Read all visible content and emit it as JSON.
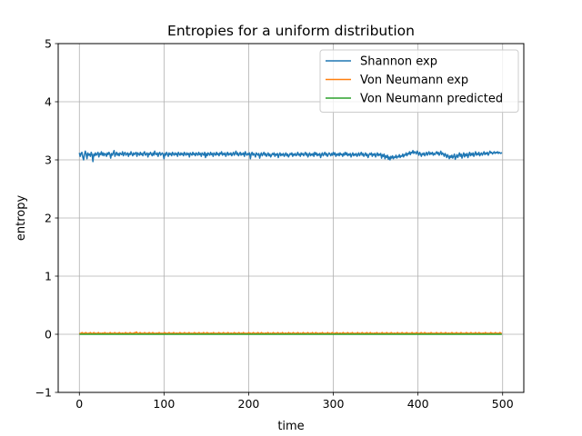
{
  "chart_data": {
    "type": "line",
    "title": "Entropies for a uniform distribution",
    "xlabel": "time",
    "ylabel": "entropy",
    "xlim": [
      -25,
      525
    ],
    "ylim": [
      -1,
      5
    ],
    "xticks": [
      0,
      100,
      200,
      300,
      400,
      500
    ],
    "yticks": [
      -1,
      0,
      1,
      2,
      3,
      4,
      5
    ],
    "grid": true,
    "legend_position": "top-right",
    "series": [
      {
        "name": "Shannon exp",
        "color": "#1f77b4",
        "x_range": [
          0,
          499
        ],
        "values": [
          3.12,
          3.06,
          3.11,
          3.13,
          3.05,
          3.0,
          3.09,
          3.15,
          3.1,
          3.02,
          3.12,
          3.08,
          3.1,
          3.06,
          3.13,
          3.09,
          2.97,
          3.1,
          3.07,
          3.12,
          3.08,
          3.1,
          3.13,
          3.05,
          3.11,
          3.09,
          3.14,
          3.08,
          3.12,
          3.07,
          3.11,
          3.1,
          3.06,
          3.12,
          3.09,
          3.13,
          3.1,
          3.03,
          3.11,
          3.08,
          3.12,
          3.16,
          3.06,
          3.1,
          3.13,
          3.08,
          3.11,
          3.07,
          3.12,
          3.1,
          3.09,
          3.14,
          3.07,
          3.11,
          3.13,
          3.08,
          3.1,
          3.12,
          3.06,
          3.11,
          3.09,
          3.14,
          3.1,
          3.07,
          3.12,
          3.09,
          3.11,
          3.13,
          3.06,
          3.12,
          3.1,
          3.08,
          3.13,
          3.09,
          3.11,
          3.07,
          3.12,
          3.14,
          3.08,
          3.1,
          3.12,
          3.05,
          3.11,
          3.09,
          3.13,
          3.1,
          3.07,
          3.12,
          3.08,
          3.15,
          3.1,
          3.09,
          3.12,
          3.06,
          3.11,
          3.13,
          3.08,
          3.1,
          3.12,
          3.09,
          3.02,
          3.11,
          3.08,
          3.13,
          3.1,
          3.06,
          3.12,
          3.09,
          3.11,
          3.07,
          3.13,
          3.1,
          3.08,
          3.12,
          3.09,
          3.11,
          3.06,
          3.13,
          3.1,
          3.08,
          3.12,
          3.09,
          3.11,
          3.07,
          3.13,
          3.1,
          3.08,
          3.12,
          3.09,
          3.11,
          3.05,
          3.12,
          3.1,
          3.08,
          3.13,
          3.09,
          3.11,
          3.07,
          3.12,
          3.1,
          3.08,
          3.13,
          3.09,
          3.11,
          3.06,
          3.12,
          3.1,
          3.08,
          3.13,
          3.04,
          3.11,
          3.07,
          3.12,
          3.1,
          3.08,
          3.13,
          3.09,
          3.11,
          3.06,
          3.12,
          3.1,
          3.08,
          3.13,
          3.09,
          3.11,
          3.07,
          3.12,
          3.1,
          3.14,
          3.08,
          3.11,
          3.09,
          3.12,
          3.06,
          3.1,
          3.13,
          3.08,
          3.11,
          3.09,
          3.12,
          3.07,
          3.1,
          3.13,
          3.08,
          3.11,
          3.15,
          3.09,
          3.12,
          3.07,
          3.1,
          3.13,
          3.08,
          3.11,
          3.09,
          3.12,
          3.06,
          3.14,
          3.1,
          3.08,
          3.11,
          3.09,
          3.12,
          3.02,
          3.1,
          3.13,
          3.08,
          3.11,
          3.09,
          3.05,
          3.12,
          3.1,
          3.08,
          3.11,
          3.03,
          3.09,
          3.12,
          3.07,
          3.1,
          3.13,
          3.08,
          3.11,
          3.06,
          3.09,
          3.12,
          3.07,
          3.1,
          3.05,
          3.08,
          3.11,
          3.09,
          3.12,
          3.06,
          3.1,
          3.08,
          3.11,
          3.04,
          3.09,
          3.12,
          3.07,
          3.1,
          3.08,
          3.11,
          3.06,
          3.09,
          3.12,
          3.07,
          3.1,
          3.05,
          3.08,
          3.11,
          3.09,
          3.12,
          3.06,
          3.1,
          3.08,
          3.11,
          3.07,
          3.09,
          3.13,
          3.08,
          3.1,
          3.06,
          3.12,
          3.09,
          3.11,
          3.07,
          3.1,
          3.13,
          3.08,
          3.11,
          3.05,
          3.09,
          3.12,
          3.07,
          3.1,
          3.08,
          3.11,
          3.06,
          3.13,
          3.09,
          3.12,
          3.07,
          3.1,
          3.08,
          3.11,
          3.04,
          3.09,
          3.12,
          3.07,
          3.1,
          3.13,
          3.08,
          3.11,
          3.06,
          3.09,
          3.12,
          3.1,
          3.07,
          3.11,
          3.08,
          3.13,
          3.09,
          3.12,
          3.06,
          3.1,
          3.08,
          3.11,
          3.07,
          3.12,
          3.09,
          3.1,
          3.06,
          3.11,
          3.08,
          3.13,
          3.09,
          3.12,
          3.07,
          3.1,
          3.08,
          3.11,
          3.05,
          3.09,
          3.12,
          3.07,
          3.1,
          3.08,
          3.11,
          3.06,
          3.09,
          3.12,
          3.07,
          3.1,
          3.13,
          3.08,
          3.11,
          3.06,
          3.09,
          3.12,
          3.07,
          3.1,
          3.04,
          3.08,
          3.11,
          3.09,
          3.12,
          3.06,
          3.1,
          3.08,
          3.11,
          3.05,
          3.09,
          3.12,
          3.07,
          3.1,
          3.08,
          3.11,
          3.03,
          3.09,
          3.06,
          3.1,
          3.02,
          3.07,
          3.04,
          3.08,
          3.01,
          3.05,
          3.0,
          3.06,
          3.03,
          3.07,
          3.02,
          3.05,
          3.04,
          3.08,
          3.03,
          3.06,
          3.05,
          3.09,
          3.04,
          3.07,
          3.06,
          3.1,
          3.05,
          3.09,
          3.08,
          3.12,
          3.07,
          3.11,
          3.1,
          3.14,
          3.09,
          3.13,
          3.12,
          3.16,
          3.11,
          3.14,
          3.13,
          3.1,
          3.15,
          3.12,
          3.08,
          3.13,
          3.1,
          3.06,
          3.11,
          3.09,
          3.12,
          3.07,
          3.1,
          3.13,
          3.08,
          3.11,
          3.14,
          3.09,
          3.12,
          3.1,
          3.13,
          3.08,
          3.11,
          3.09,
          3.12,
          3.14,
          3.1,
          3.13,
          3.08,
          3.11,
          3.15,
          3.09,
          3.12,
          3.1,
          3.06,
          3.11,
          3.08,
          3.04,
          3.09,
          3.06,
          3.02,
          3.07,
          3.04,
          3.08,
          3.03,
          3.06,
          3.1,
          3.01,
          3.05,
          3.09,
          3.04,
          3.08,
          3.12,
          3.06,
          3.1,
          3.03,
          3.08,
          3.12,
          3.05,
          3.1,
          3.07,
          3.11,
          3.04,
          3.09,
          3.13,
          3.07,
          3.11,
          3.08,
          3.12,
          3.06,
          3.1,
          3.14,
          3.08,
          3.11,
          3.09,
          3.13,
          3.07,
          3.1,
          3.12,
          3.08,
          3.11,
          3.14,
          3.09,
          3.12,
          3.1,
          3.13,
          3.08,
          3.11,
          3.15,
          3.12,
          3.13,
          3.1,
          3.12,
          3.14,
          3.11,
          3.13,
          3.12,
          3.14,
          3.11,
          3.13,
          3.12,
          3.11,
          3.13
        ]
      },
      {
        "name": "Von Neumann exp",
        "color": "#ff7f0e",
        "x_range": [
          0,
          499
        ],
        "values": [
          0.02,
          0.01,
          0.02,
          0.03,
          0.01,
          0.02,
          0.01,
          0.03,
          0.02,
          0.01,
          0.02,
          0.01,
          0.03,
          0.02,
          0.01,
          0.02,
          0.03,
          0.01,
          0.02,
          0.01,
          0.02,
          0.03,
          0.01,
          0.02,
          0.01,
          0.02,
          0.02,
          0.01,
          0.03,
          0.02,
          0.01,
          0.02,
          0.01,
          0.02,
          0.03,
          0.01,
          0.02,
          0.01,
          0.02,
          0.03,
          0.02,
          0.01,
          0.02,
          0.01,
          0.03,
          0.02,
          0.01,
          0.02,
          0.02,
          0.01,
          0.02,
          0.03,
          0.01,
          0.02,
          0.01,
          0.02,
          0.03,
          0.02,
          0.01,
          0.02,
          0.01,
          0.03,
          0.02,
          0.04,
          0.02,
          0.01,
          0.02,
          0.03,
          0.01,
          0.02,
          0.01,
          0.02,
          0.03,
          0.02,
          0.01,
          0.02,
          0.01,
          0.03,
          0.02,
          0.01,
          0.02,
          0.03,
          0.01,
          0.02,
          0.01,
          0.02,
          0.02,
          0.01,
          0.03,
          0.02,
          0.01,
          0.02,
          0.01,
          0.02,
          0.03,
          0.01,
          0.02,
          0.01,
          0.02,
          0.03,
          0.02,
          0.01,
          0.02,
          0.01,
          0.03,
          0.02,
          0.01,
          0.02,
          0.02,
          0.01,
          0.02,
          0.03,
          0.01,
          0.02,
          0.01,
          0.02,
          0.03,
          0.02,
          0.01,
          0.02,
          0.01,
          0.03,
          0.02,
          0.01,
          0.02,
          0.01,
          0.02,
          0.03,
          0.01,
          0.02,
          0.01,
          0.02,
          0.03,
          0.02,
          0.01,
          0.02,
          0.01,
          0.03,
          0.02,
          0.01,
          0.02,
          0.03,
          0.01,
          0.02,
          0.01,
          0.02,
          0.02,
          0.01,
          0.03,
          0.02,
          0.01,
          0.02,
          0.01,
          0.02,
          0.03,
          0.01,
          0.02,
          0.01,
          0.02,
          0.03,
          0.02,
          0.01,
          0.02,
          0.01,
          0.03,
          0.02,
          0.01,
          0.02,
          0.02,
          0.01,
          0.02,
          0.03,
          0.01,
          0.02,
          0.01,
          0.02,
          0.03,
          0.02,
          0.01,
          0.02,
          0.01,
          0.03,
          0.02,
          0.01,
          0.02,
          0.01,
          0.02,
          0.03,
          0.01,
          0.02,
          0.01,
          0.02,
          0.03,
          0.02,
          0.01,
          0.02,
          0.01,
          0.03,
          0.02,
          0.01,
          0.02,
          0.03,
          0.01,
          0.02,
          0.01,
          0.02,
          0.02,
          0.01,
          0.03,
          0.02,
          0.01,
          0.02,
          0.01,
          0.02,
          0.03,
          0.01,
          0.02,
          0.01,
          0.02,
          0.03,
          0.02,
          0.01,
          0.02,
          0.01,
          0.03,
          0.02,
          0.01,
          0.02,
          0.02,
          0.01,
          0.02,
          0.03,
          0.01,
          0.02,
          0.01,
          0.02,
          0.03,
          0.02,
          0.01,
          0.02,
          0.01,
          0.03,
          0.02,
          0.01,
          0.02,
          0.01,
          0.02,
          0.03,
          0.01,
          0.02,
          0.01,
          0.02,
          0.03,
          0.02,
          0.01,
          0.02,
          0.01,
          0.03,
          0.02,
          0.01,
          0.02,
          0.03,
          0.01,
          0.02,
          0.01,
          0.02,
          0.02,
          0.01,
          0.03,
          0.02,
          0.01,
          0.02,
          0.01,
          0.02,
          0.03,
          0.01,
          0.02,
          0.01,
          0.02,
          0.03,
          0.02,
          0.01,
          0.02,
          0.01,
          0.03,
          0.02,
          0.01,
          0.02,
          0.02,
          0.01,
          0.02,
          0.03,
          0.01,
          0.02,
          0.01,
          0.02,
          0.03,
          0.02,
          0.01,
          0.02,
          0.01,
          0.03,
          0.02,
          0.01,
          0.02,
          0.01,
          0.02,
          0.03,
          0.01,
          0.02,
          0.01,
          0.02,
          0.03,
          0.02,
          0.01,
          0.02,
          0.01,
          0.03,
          0.02,
          0.01,
          0.02,
          0.03,
          0.01,
          0.02,
          0.01,
          0.02,
          0.02,
          0.01,
          0.03,
          0.02,
          0.01,
          0.02,
          0.01,
          0.02,
          0.03,
          0.01,
          0.02,
          0.01,
          0.02,
          0.03,
          0.02,
          0.01,
          0.02,
          0.01,
          0.03,
          0.02,
          0.01,
          0.02,
          0.02,
          0.01,
          0.02,
          0.03,
          0.01,
          0.02,
          0.01,
          0.02,
          0.03,
          0.02,
          0.01,
          0.02,
          0.01,
          0.03,
          0.02,
          0.01,
          0.02,
          0.01,
          0.02,
          0.03,
          0.01,
          0.02,
          0.01,
          0.02,
          0.03,
          0.02,
          0.01,
          0.02,
          0.01,
          0.03,
          0.02,
          0.01,
          0.02,
          0.03,
          0.01,
          0.02,
          0.01,
          0.02,
          0.02,
          0.01,
          0.03,
          0.02,
          0.01,
          0.02,
          0.01,
          0.02,
          0.03,
          0.01,
          0.02,
          0.01,
          0.02,
          0.03,
          0.02,
          0.01,
          0.02,
          0.01,
          0.03,
          0.02,
          0.01,
          0.02,
          0.02,
          0.01,
          0.02,
          0.03,
          0.01,
          0.02,
          0.01,
          0.02,
          0.03,
          0.02,
          0.01,
          0.02,
          0.01,
          0.03,
          0.02,
          0.01,
          0.02,
          0.01,
          0.02,
          0.03,
          0.01,
          0.02,
          0.01,
          0.02,
          0.03,
          0.02,
          0.01,
          0.02,
          0.01,
          0.03,
          0.02,
          0.01,
          0.02,
          0.03,
          0.01,
          0.02,
          0.01,
          0.02,
          0.02,
          0.01,
          0.03,
          0.02,
          0.01,
          0.02,
          0.01,
          0.02,
          0.03,
          0.01,
          0.02,
          0.01,
          0.02,
          0.03,
          0.02,
          0.01,
          0.02,
          0.01,
          0.03,
          0.02,
          0.01
        ]
      },
      {
        "name": "Von Neumann predicted",
        "color": "#2ca02c",
        "x": [
          0,
          499
        ],
        "values": [
          0.0,
          0.0
        ]
      }
    ]
  }
}
